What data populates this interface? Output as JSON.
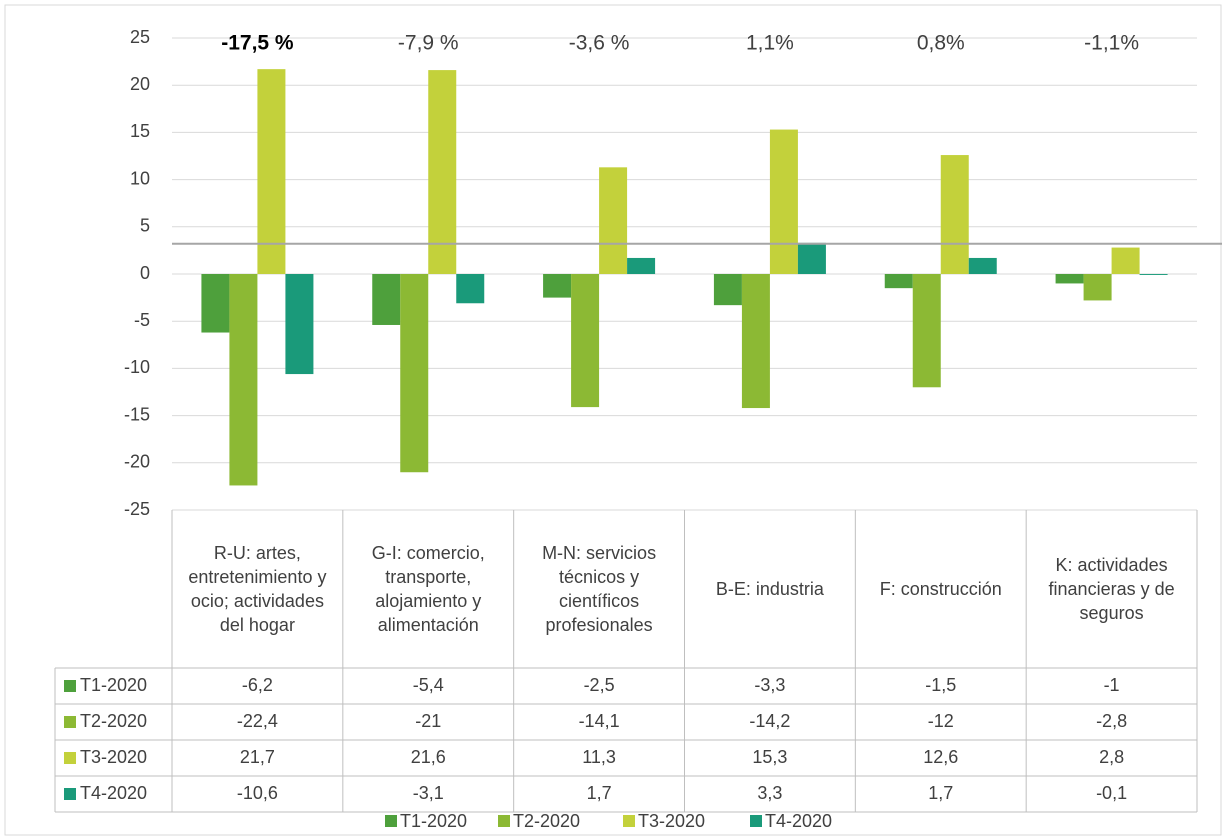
{
  "chart_data": {
    "type": "bar",
    "categories": [
      "R-U: artes, entretenimiento y ocio; actividades del hogar",
      "G-I: comercio, transporte, alojamiento y alimentación",
      "M-N: servicios técnicos y científicos profesionales",
      "B-E: industria",
      "F: construcción",
      "K: actividades financieras y de seguros"
    ],
    "series": [
      {
        "name": "T1-2020",
        "color": "#4ea03c",
        "values": [
          -6.2,
          -5.4,
          -2.5,
          -3.3,
          -1.5,
          -1
        ],
        "value_labels": [
          "-6,2",
          "-5,4",
          "-2,5",
          "-3,3",
          "-1,5",
          "-1"
        ]
      },
      {
        "name": "T2-2020",
        "color": "#8cb934",
        "values": [
          -22.4,
          -21,
          -14.1,
          -14.2,
          -12,
          -2.8
        ],
        "value_labels": [
          "-22,4",
          "-21",
          "-14,1",
          "-14,2",
          "-12",
          "-2,8"
        ]
      },
      {
        "name": "T3-2020",
        "color": "#c3d13b",
        "values": [
          21.7,
          21.6,
          11.3,
          15.3,
          12.6,
          2.8
        ],
        "value_labels": [
          "21,7",
          "21,6",
          "11,3",
          "15,3",
          "12,6",
          "2,8"
        ]
      },
      {
        "name": "T4-2020",
        "color": "#1a9a7a",
        "values": [
          -10.6,
          -3.1,
          1.7,
          3.3,
          1.7,
          -0.1
        ],
        "value_labels": [
          "-10,6",
          "-3,1",
          "1,7",
          "3,3",
          "1,7",
          "-0,1"
        ]
      }
    ],
    "annotations": [
      "-17,5 %",
      "-7,9 %",
      "-3,6 %",
      "1,1%",
      "0,8%",
      "-1,1%"
    ],
    "annotation_bold": [
      true,
      false,
      false,
      false,
      false,
      false
    ],
    "reference_line": 3.2,
    "ylim": [
      -25,
      25
    ],
    "yticks": [
      -25,
      -20,
      -15,
      -10,
      -5,
      0,
      5,
      10,
      15,
      20,
      25
    ],
    "grid": true,
    "legend": "bottom"
  }
}
